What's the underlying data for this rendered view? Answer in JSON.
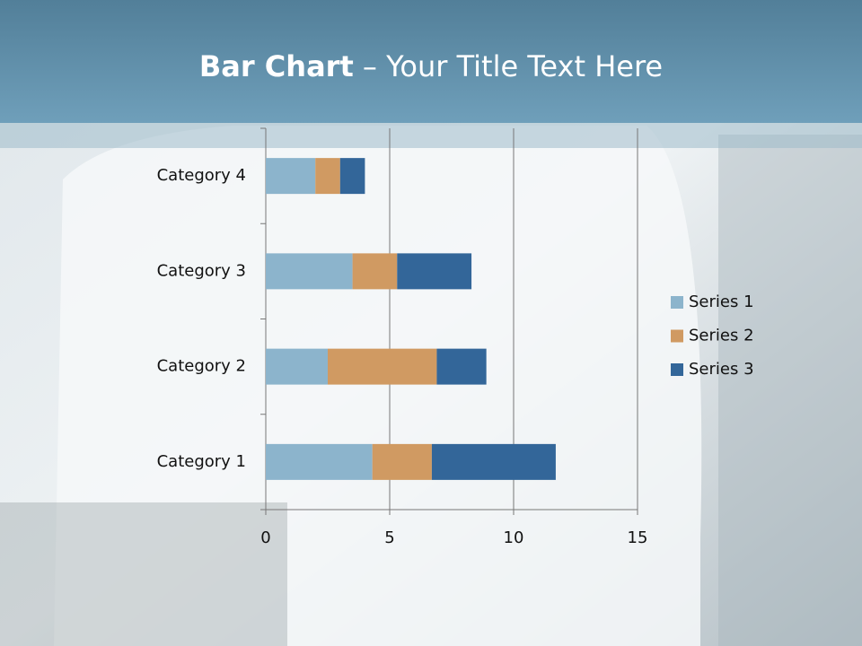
{
  "chart_data": {
    "type": "stacked-barh",
    "title": {
      "bold": "Bar Chart",
      "rest": "– Your Title Text Here"
    },
    "categories": [
      "Category 1",
      "Category 2",
      "Category 3",
      "Category 4"
    ],
    "series": [
      {
        "name": "Series 1",
        "color": "#8cb4cc",
        "values": [
          4.3,
          2.5,
          3.5,
          2.0
        ]
      },
      {
        "name": "Series 2",
        "color": "#d09a62",
        "values": [
          2.4,
          4.4,
          1.8,
          1.0
        ]
      },
      {
        "name": "Series 3",
        "color": "#336699",
        "values": [
          5.0,
          2.0,
          3.0,
          1.0
        ]
      }
    ],
    "xlim": [
      0,
      15
    ],
    "xticks": [
      0,
      5,
      10,
      15
    ],
    "grid": true,
    "legend": "right"
  }
}
